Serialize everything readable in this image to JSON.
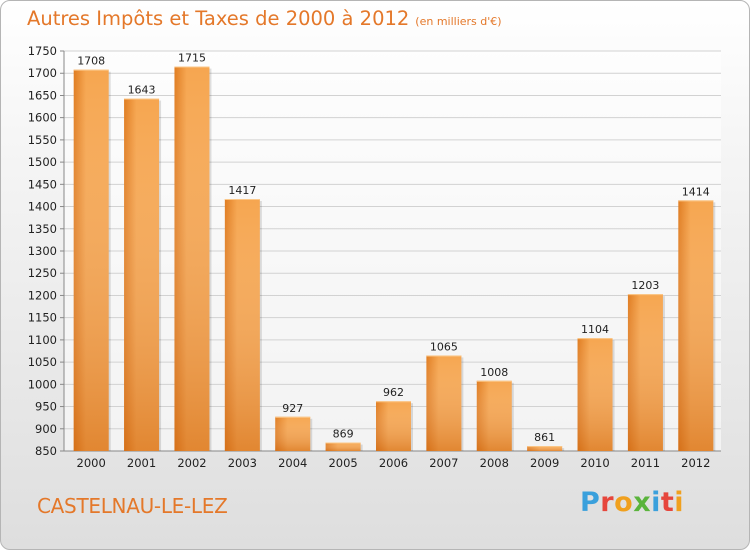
{
  "header": {
    "title": "Autres Impôts et Taxes de 2000 à 2012",
    "subtitle": "(en milliers d'€)"
  },
  "footer": {
    "city": "CASTELNAU-LE-LEZ",
    "brand_letters": [
      "P",
      "r",
      "o",
      "x",
      "i",
      "t",
      "i"
    ],
    "brand_colors": [
      "#3aa0dc",
      "#e6463c",
      "#f0a01e",
      "#5ab43c",
      "#3aa0dc",
      "#e6463c",
      "#f0a01e"
    ]
  },
  "chart_data": {
    "type": "bar",
    "categories": [
      "2000",
      "2001",
      "2002",
      "2003",
      "2004",
      "2005",
      "2006",
      "2007",
      "2008",
      "2009",
      "2010",
      "2011",
      "2012"
    ],
    "values": [
      1708,
      1643,
      1715,
      1417,
      927,
      869,
      962,
      1065,
      1008,
      861,
      1104,
      1203,
      1414
    ],
    "ylim": [
      850,
      1750
    ],
    "ytick_step": 50,
    "grid": true,
    "colors": {
      "bar_light": "#f6a650",
      "bar_dark": "#e07d22",
      "grid": "#d2d2d2"
    }
  }
}
